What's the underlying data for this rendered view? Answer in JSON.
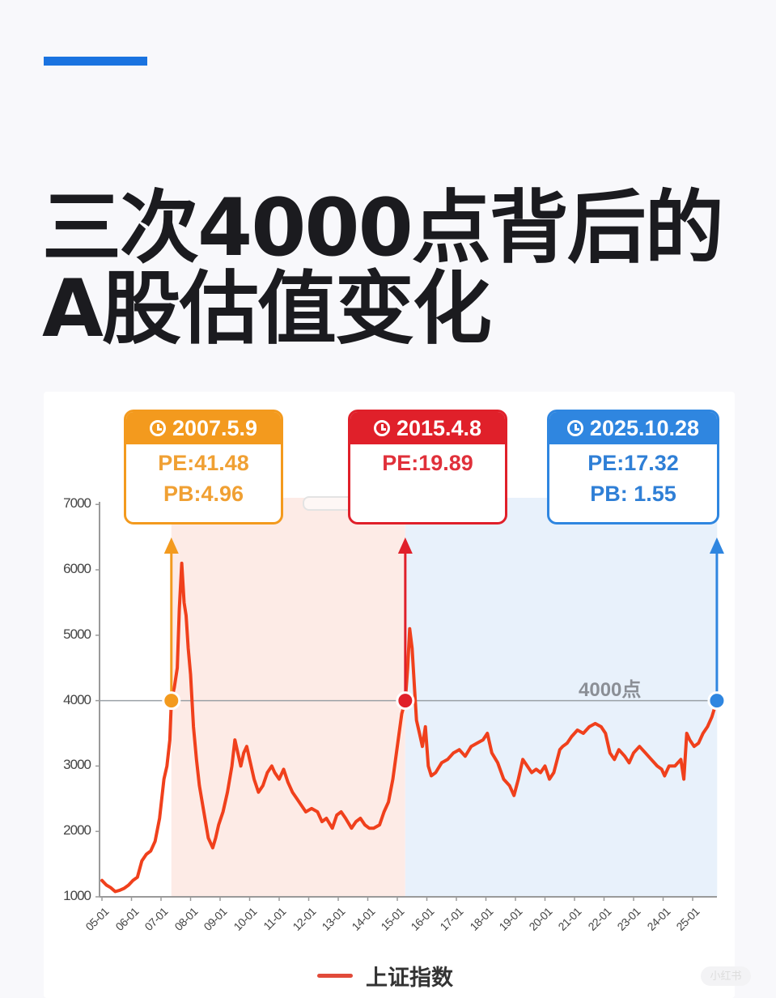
{
  "header": {
    "accent_color": "#1a73e0",
    "title_line1": "三次4000点背后的",
    "title_line2": "A股估值变化"
  },
  "callouts": [
    {
      "date": "2007.5.9",
      "pe": "PE:41.48",
      "pb": "PB:4.96",
      "color": "#f39a1e",
      "text_color": "#f0a033",
      "icon": "clock-icon"
    },
    {
      "date": "2015.4.8",
      "pe": "PE:19.89",
      "pb": "",
      "color": "#e0202a",
      "text_color": "#e0303a",
      "icon": "clock-icon"
    },
    {
      "date": "2025.10.28",
      "pe": "PE:17.32",
      "pb": "PB: 1.55",
      "color": "#2f86e0",
      "text_color": "#2f7fd6",
      "icon": "clock-icon"
    }
  ],
  "reference_line_label": "4000点",
  "legend": {
    "label": "上证指数",
    "color": "#e14a3a"
  },
  "watermark": "小红书",
  "chart_data": {
    "type": "line",
    "title": "三次4000点背后的A股估值变化",
    "xlabel": "",
    "ylabel": "",
    "ylim": [
      1000,
      7000
    ],
    "yticks": [
      1000,
      2000,
      3000,
      4000,
      5000,
      6000,
      7000
    ],
    "xticks": [
      "05-01",
      "06-01",
      "07-01",
      "08-01",
      "09-01",
      "10-01",
      "11-01",
      "12-01",
      "13-01",
      "14-01",
      "15-01",
      "16-01",
      "17-01",
      "18-01",
      "19-01",
      "20-01",
      "21-01",
      "22-01",
      "23-01",
      "24-01",
      "25-01"
    ],
    "grid": false,
    "legend_position": "bottom",
    "reference_line": {
      "y": 4000,
      "label": "4000点"
    },
    "shaded_regions": [
      {
        "from": 2007.35,
        "to": 2015.27,
        "color": "#fdebe6"
      },
      {
        "from": 2015.27,
        "to": 2025.83,
        "color": "#e8f1fb"
      }
    ],
    "annotations": [
      {
        "x": 2007.35,
        "y": 4000,
        "date": "2007.5.9",
        "PE": 41.48,
        "PB": 4.96
      },
      {
        "x": 2015.27,
        "y": 4000,
        "date": "2015.4.8",
        "PE": 19.89
      },
      {
        "x": 2025.82,
        "y": 4000,
        "date": "2025.10.28",
        "PE": 17.32,
        "PB": 1.55
      }
    ],
    "series": [
      {
        "name": "上证指数",
        "x": [
          2005.0,
          2005.15,
          2005.3,
          2005.45,
          2005.6,
          2005.75,
          2005.9,
          2006.05,
          2006.2,
          2006.35,
          2006.5,
          2006.65,
          2006.8,
          2006.95,
          2007.1,
          2007.2,
          2007.3,
          2007.35,
          2007.45,
          2007.55,
          2007.62,
          2007.7,
          2007.78,
          2007.85,
          2007.92,
          2008.0,
          2008.1,
          2008.2,
          2008.3,
          2008.45,
          2008.6,
          2008.75,
          2008.85,
          2008.95,
          2009.1,
          2009.25,
          2009.4,
          2009.5,
          2009.6,
          2009.7,
          2009.8,
          2009.9,
          2010.0,
          2010.15,
          2010.3,
          2010.45,
          2010.6,
          2010.75,
          2010.85,
          2011.0,
          2011.15,
          2011.3,
          2011.45,
          2011.6,
          2011.75,
          2011.9,
          2012.1,
          2012.3,
          2012.45,
          2012.6,
          2012.8,
          2012.95,
          2013.1,
          2013.25,
          2013.45,
          2013.6,
          2013.75,
          2013.9,
          2014.05,
          2014.2,
          2014.4,
          2014.55,
          2014.7,
          2014.85,
          2015.0,
          2015.15,
          2015.27,
          2015.35,
          2015.42,
          2015.5,
          2015.58,
          2015.65,
          2015.75,
          2015.85,
          2015.95,
          2016.05,
          2016.15,
          2016.3,
          2016.5,
          2016.7,
          2016.9,
          2017.1,
          2017.3,
          2017.5,
          2017.7,
          2017.9,
          2018.05,
          2018.2,
          2018.4,
          2018.6,
          2018.8,
          2018.95,
          2019.1,
          2019.25,
          2019.4,
          2019.55,
          2019.7,
          2019.85,
          2020.0,
          2020.15,
          2020.3,
          2020.5,
          2020.6,
          2020.75,
          2020.9,
          2021.1,
          2021.3,
          2021.5,
          2021.7,
          2021.9,
          2022.05,
          2022.2,
          2022.35,
          2022.5,
          2022.7,
          2022.85,
          2023.0,
          2023.2,
          2023.4,
          2023.6,
          2023.8,
          2023.95,
          2024.05,
          2024.2,
          2024.4,
          2024.6,
          2024.7,
          2024.8,
          2024.9,
          2025.05,
          2025.2,
          2025.35,
          2025.5,
          2025.65,
          2025.82
        ],
        "values": [
          1250,
          1180,
          1140,
          1080,
          1100,
          1130,
          1180,
          1250,
          1300,
          1550,
          1650,
          1700,
          1850,
          2200,
          2800,
          3000,
          3400,
          4000,
          4200,
          4500,
          5400,
          6100,
          5500,
          5300,
          4800,
          4400,
          3600,
          3100,
          2700,
          2300,
          1900,
          1750,
          1900,
          2100,
          2300,
          2600,
          3000,
          3400,
          3200,
          3000,
          3200,
          3300,
          3100,
          2800,
          2600,
          2700,
          2900,
          3000,
          2900,
          2800,
          2950,
          2750,
          2600,
          2500,
          2400,
          2300,
          2350,
          2300,
          2150,
          2200,
          2050,
          2250,
          2300,
          2200,
          2050,
          2150,
          2200,
          2100,
          2050,
          2050,
          2100,
          2300,
          2450,
          2800,
          3300,
          3800,
          4000,
          4500,
          5100,
          4800,
          4200,
          3700,
          3500,
          3300,
          3600,
          3000,
          2850,
          2900,
          3050,
          3100,
          3200,
          3250,
          3150,
          3300,
          3350,
          3400,
          3500,
          3200,
          3050,
          2800,
          2700,
          2550,
          2800,
          3100,
          3000,
          2900,
          2950,
          2900,
          3000,
          2800,
          2900,
          3250,
          3300,
          3350,
          3450,
          3550,
          3500,
          3600,
          3650,
          3600,
          3500,
          3200,
          3100,
          3250,
          3150,
          3050,
          3200,
          3300,
          3200,
          3100,
          3000,
          2950,
          2850,
          3000,
          3000,
          3100,
          2800,
          3500,
          3400,
          3300,
          3350,
          3500,
          3600,
          3750,
          4000
        ]
      }
    ]
  }
}
